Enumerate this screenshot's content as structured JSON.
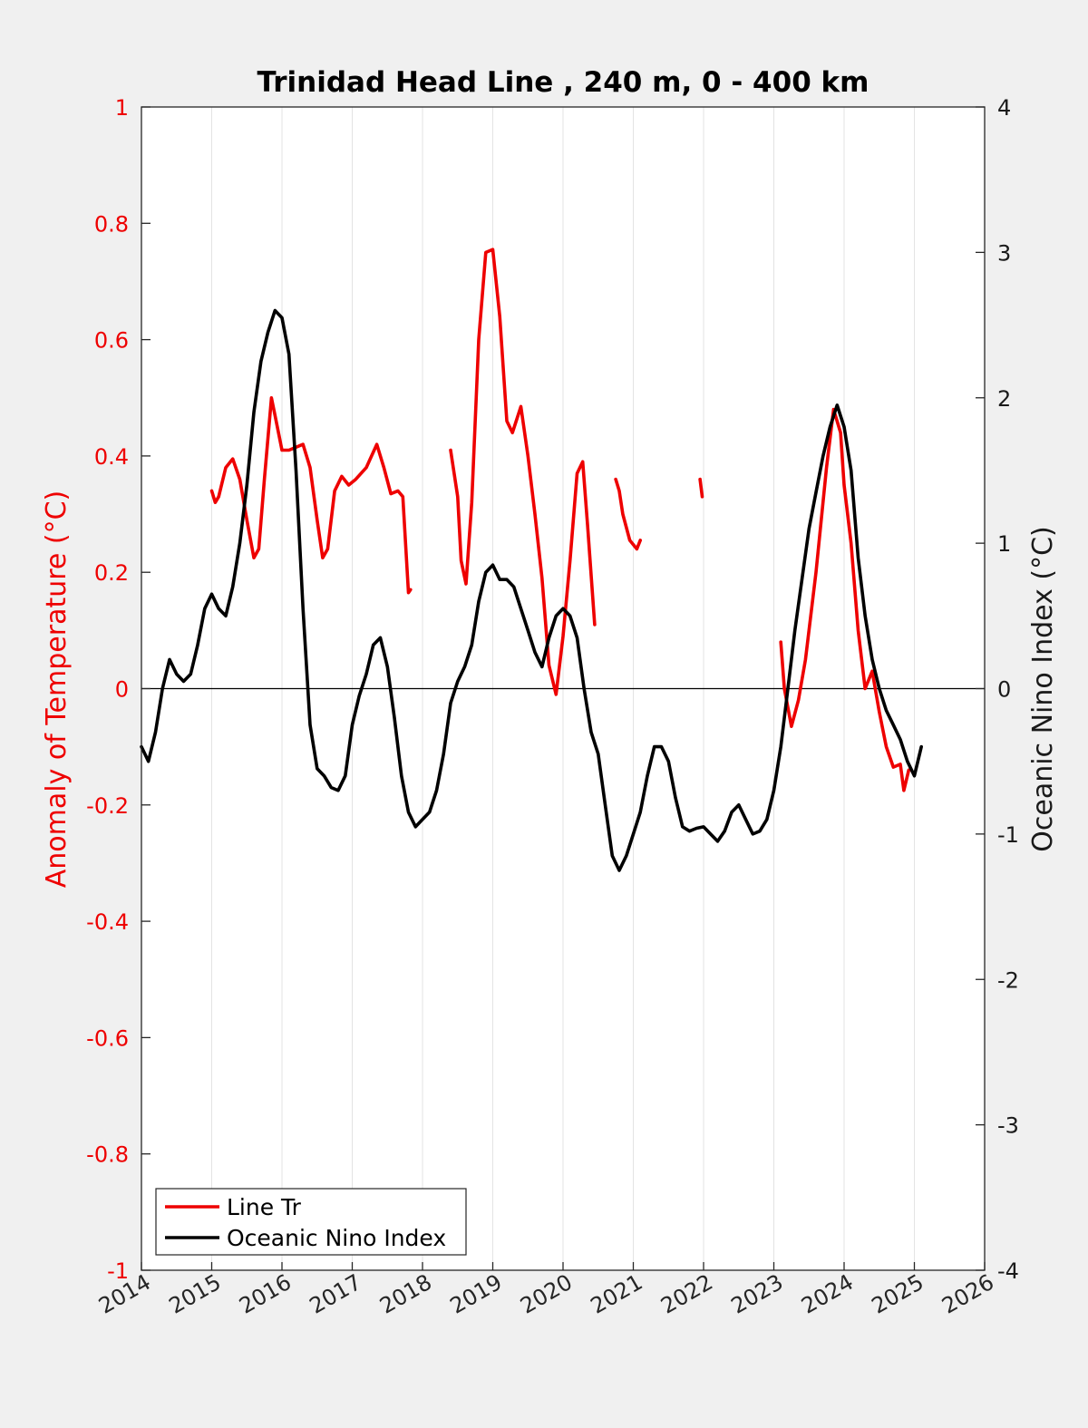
{
  "chart_data": {
    "type": "line",
    "title": "Trinidad Head Line , 240 m, 0 - 400 km",
    "ylabel_left": "Anomaly of Temperature (°C)",
    "ylabel_right": "Oceanic Nino Index (°C)",
    "xlim": [
      2014,
      2026
    ],
    "ylim_left": [
      -1,
      1
    ],
    "ylim_right": [
      -4,
      4
    ],
    "x_ticks": [
      "2014",
      "2015",
      "2016",
      "2017",
      "2018",
      "2019",
      "2020",
      "2021",
      "2022",
      "2023",
      "2024",
      "2025",
      "2026"
    ],
    "y_left_ticks": [
      "1",
      "0.8",
      "0.6",
      "0.4",
      "0.2",
      "0",
      "-0.2",
      "-0.4",
      "-0.6",
      "-0.8",
      "-1"
    ],
    "y_right_ticks": [
      "4",
      "3",
      "2",
      "1",
      "0",
      "-1",
      "-2",
      "-3",
      "-4"
    ],
    "grid": "vertical",
    "legend": "bottom-left",
    "colors": {
      "line_tr": "#ee0000",
      "oni": "#000000"
    },
    "series": [
      {
        "name": "Line Tr",
        "axis": "left",
        "segments": [
          [
            [
              2015.0,
              0.34
            ],
            [
              2015.05,
              0.32
            ],
            [
              2015.1,
              0.33
            ],
            [
              2015.2,
              0.38
            ],
            [
              2015.3,
              0.395
            ],
            [
              2015.4,
              0.36
            ],
            [
              2015.5,
              0.29
            ],
            [
              2015.6,
              0.225
            ],
            [
              2015.67,
              0.24
            ],
            [
              2015.75,
              0.36
            ],
            [
              2015.85,
              0.5
            ],
            [
              2015.9,
              0.47
            ],
            [
              2016.0,
              0.41
            ],
            [
              2016.1,
              0.41
            ],
            [
              2016.3,
              0.42
            ],
            [
              2016.4,
              0.38
            ],
            [
              2016.5,
              0.29
            ],
            [
              2016.58,
              0.225
            ],
            [
              2016.65,
              0.24
            ],
            [
              2016.75,
              0.34
            ],
            [
              2016.85,
              0.365
            ],
            [
              2016.95,
              0.35
            ],
            [
              2017.05,
              0.36
            ],
            [
              2017.2,
              0.38
            ],
            [
              2017.35,
              0.42
            ],
            [
              2017.45,
              0.38
            ],
            [
              2017.55,
              0.335
            ],
            [
              2017.65,
              0.34
            ],
            [
              2017.72,
              0.33
            ],
            [
              2017.8,
              0.165
            ],
            [
              2017.83,
              0.17
            ]
          ],
          [
            [
              2018.4,
              0.41
            ],
            [
              2018.5,
              0.33
            ],
            [
              2018.55,
              0.22
            ],
            [
              2018.62,
              0.18
            ],
            [
              2018.7,
              0.32
            ],
            [
              2018.8,
              0.6
            ],
            [
              2018.9,
              0.75
            ],
            [
              2019.0,
              0.755
            ],
            [
              2019.1,
              0.64
            ],
            [
              2019.2,
              0.46
            ],
            [
              2019.28,
              0.44
            ],
            [
              2019.4,
              0.485
            ],
            [
              2019.5,
              0.4
            ],
            [
              2019.6,
              0.3
            ],
            [
              2019.7,
              0.19
            ],
            [
              2019.8,
              0.04
            ],
            [
              2019.9,
              -0.01
            ],
            [
              2020.0,
              0.09
            ],
            [
              2020.1,
              0.22
            ],
            [
              2020.2,
              0.37
            ],
            [
              2020.28,
              0.39
            ],
            [
              2020.35,
              0.28
            ],
            [
              2020.45,
              0.11
            ]
          ],
          [
            [
              2020.75,
              0.36
            ],
            [
              2020.8,
              0.34
            ],
            [
              2020.85,
              0.3
            ],
            [
              2020.95,
              0.255
            ],
            [
              2021.05,
              0.24
            ],
            [
              2021.1,
              0.255
            ]
          ],
          [
            [
              2021.95,
              0.36
            ],
            [
              2021.98,
              0.33
            ]
          ],
          [
            [
              2023.1,
              0.08
            ],
            [
              2023.15,
              0.0
            ],
            [
              2023.25,
              -0.065
            ],
            [
              2023.35,
              -0.02
            ],
            [
              2023.45,
              0.05
            ],
            [
              2023.6,
              0.2
            ],
            [
              2023.75,
              0.38
            ],
            [
              2023.85,
              0.48
            ],
            [
              2023.95,
              0.44
            ],
            [
              2024.0,
              0.35
            ],
            [
              2024.1,
              0.25
            ],
            [
              2024.2,
              0.1
            ],
            [
              2024.3,
              0.0
            ],
            [
              2024.4,
              0.03
            ],
            [
              2024.5,
              -0.04
            ],
            [
              2024.6,
              -0.1
            ],
            [
              2024.7,
              -0.135
            ],
            [
              2024.8,
              -0.13
            ],
            [
              2024.85,
              -0.175
            ],
            [
              2024.92,
              -0.14
            ]
          ]
        ]
      },
      {
        "name": "Oceanic Nino Index",
        "axis": "right",
        "points": [
          [
            2014.0,
            -0.4
          ],
          [
            2014.1,
            -0.5
          ],
          [
            2014.2,
            -0.3
          ],
          [
            2014.3,
            0.0
          ],
          [
            2014.4,
            0.2
          ],
          [
            2014.5,
            0.1
          ],
          [
            2014.6,
            0.05
          ],
          [
            2014.7,
            0.1
          ],
          [
            2014.8,
            0.3
          ],
          [
            2014.9,
            0.55
          ],
          [
            2015.0,
            0.65
          ],
          [
            2015.1,
            0.55
          ],
          [
            2015.2,
            0.5
          ],
          [
            2015.3,
            0.7
          ],
          [
            2015.4,
            1.0
          ],
          [
            2015.5,
            1.4
          ],
          [
            2015.6,
            1.9
          ],
          [
            2015.7,
            2.25
          ],
          [
            2015.8,
            2.45
          ],
          [
            2015.9,
            2.6
          ],
          [
            2016.0,
            2.55
          ],
          [
            2016.1,
            2.3
          ],
          [
            2016.2,
            1.5
          ],
          [
            2016.3,
            0.55
          ],
          [
            2016.4,
            -0.25
          ],
          [
            2016.5,
            -0.55
          ],
          [
            2016.6,
            -0.6
          ],
          [
            2016.7,
            -0.68
          ],
          [
            2016.8,
            -0.7
          ],
          [
            2016.9,
            -0.6
          ],
          [
            2017.0,
            -0.25
          ],
          [
            2017.1,
            -0.05
          ],
          [
            2017.2,
            0.1
          ],
          [
            2017.3,
            0.3
          ],
          [
            2017.4,
            0.35
          ],
          [
            2017.5,
            0.15
          ],
          [
            2017.6,
            -0.2
          ],
          [
            2017.7,
            -0.6
          ],
          [
            2017.8,
            -0.85
          ],
          [
            2017.9,
            -0.95
          ],
          [
            2018.0,
            -0.9
          ],
          [
            2018.1,
            -0.85
          ],
          [
            2018.2,
            -0.7
          ],
          [
            2018.3,
            -0.45
          ],
          [
            2018.4,
            -0.1
          ],
          [
            2018.5,
            0.05
          ],
          [
            2018.6,
            0.15
          ],
          [
            2018.7,
            0.3
          ],
          [
            2018.8,
            0.6
          ],
          [
            2018.9,
            0.8
          ],
          [
            2019.0,
            0.85
          ],
          [
            2019.1,
            0.75
          ],
          [
            2019.2,
            0.75
          ],
          [
            2019.3,
            0.7
          ],
          [
            2019.4,
            0.55
          ],
          [
            2019.5,
            0.4
          ],
          [
            2019.6,
            0.25
          ],
          [
            2019.7,
            0.15
          ],
          [
            2019.8,
            0.35
          ],
          [
            2019.9,
            0.5
          ],
          [
            2020.0,
            0.55
          ],
          [
            2020.1,
            0.5
          ],
          [
            2020.2,
            0.35
          ],
          [
            2020.3,
            0.0
          ],
          [
            2020.4,
            -0.3
          ],
          [
            2020.5,
            -0.45
          ],
          [
            2020.6,
            -0.8
          ],
          [
            2020.7,
            -1.15
          ],
          [
            2020.8,
            -1.25
          ],
          [
            2020.9,
            -1.15
          ],
          [
            2021.0,
            -1.0
          ],
          [
            2021.1,
            -0.85
          ],
          [
            2021.2,
            -0.6
          ],
          [
            2021.3,
            -0.4
          ],
          [
            2021.4,
            -0.4
          ],
          [
            2021.5,
            -0.5
          ],
          [
            2021.6,
            -0.75
          ],
          [
            2021.7,
            -0.95
          ],
          [
            2021.8,
            -0.98
          ],
          [
            2021.9,
            -0.96
          ],
          [
            2022.0,
            -0.95
          ],
          [
            2022.1,
            -1.0
          ],
          [
            2022.2,
            -1.05
          ],
          [
            2022.3,
            -0.98
          ],
          [
            2022.4,
            -0.85
          ],
          [
            2022.5,
            -0.8
          ],
          [
            2022.6,
            -0.9
          ],
          [
            2022.7,
            -1.0
          ],
          [
            2022.8,
            -0.98
          ],
          [
            2022.9,
            -0.9
          ],
          [
            2023.0,
            -0.7
          ],
          [
            2023.1,
            -0.4
          ],
          [
            2023.2,
            0.0
          ],
          [
            2023.3,
            0.4
          ],
          [
            2023.4,
            0.75
          ],
          [
            2023.5,
            1.1
          ],
          [
            2023.6,
            1.35
          ],
          [
            2023.7,
            1.6
          ],
          [
            2023.8,
            1.8
          ],
          [
            2023.9,
            1.95
          ],
          [
            2024.0,
            1.8
          ],
          [
            2024.1,
            1.5
          ],
          [
            2024.2,
            0.9
          ],
          [
            2024.3,
            0.5
          ],
          [
            2024.4,
            0.2
          ],
          [
            2024.5,
            0.0
          ],
          [
            2024.6,
            -0.15
          ],
          [
            2024.7,
            -0.25
          ],
          [
            2024.8,
            -0.35
          ],
          [
            2024.9,
            -0.5
          ],
          [
            2025.0,
            -0.6
          ],
          [
            2025.1,
            -0.4
          ]
        ]
      }
    ]
  },
  "legend": {
    "items": [
      {
        "label": "Line Tr",
        "color": "#ee0000"
      },
      {
        "label": "Oceanic Nino Index",
        "color": "#000000"
      }
    ]
  }
}
